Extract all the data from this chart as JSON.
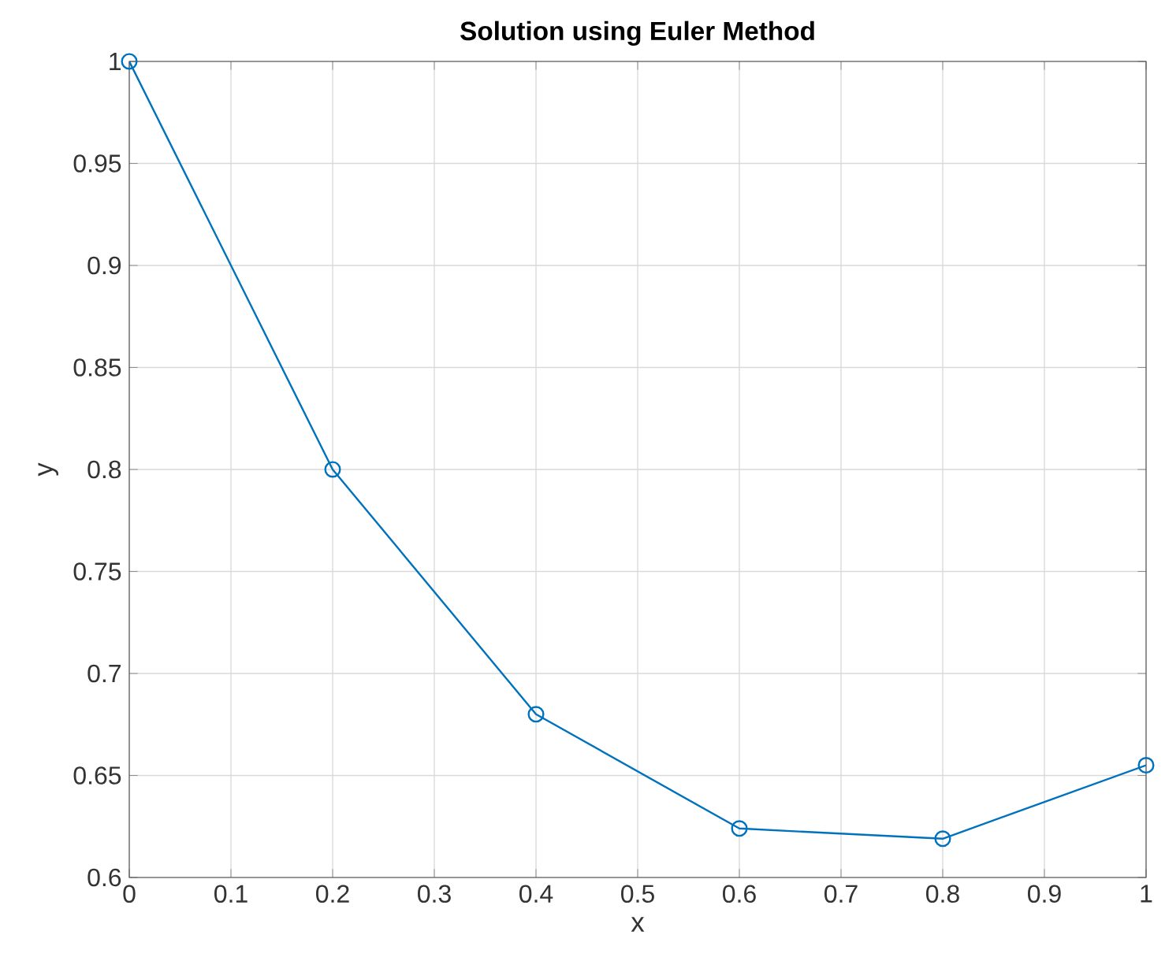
{
  "chart_data": {
    "type": "line",
    "title": "Solution using Euler Method",
    "xlabel": "x",
    "ylabel": "y",
    "x": [
      0,
      0.2,
      0.4,
      0.6,
      0.8,
      1
    ],
    "series": [
      {
        "color": "#0072bd",
        "values": [
          1,
          0.8,
          0.68,
          0.624,
          0.619,
          0.655
        ]
      }
    ],
    "xlim": [
      0,
      1
    ],
    "ylim": [
      0.6,
      1
    ],
    "xticks": [
      0,
      0.1,
      0.2,
      0.3,
      0.4,
      0.5,
      0.6,
      0.7,
      0.8,
      0.9,
      1
    ],
    "yticks": [
      0.6,
      0.65,
      0.7,
      0.75,
      0.8,
      0.85,
      0.9,
      0.95,
      1
    ],
    "grid": true,
    "marker": "circle",
    "line_style": "solid"
  }
}
